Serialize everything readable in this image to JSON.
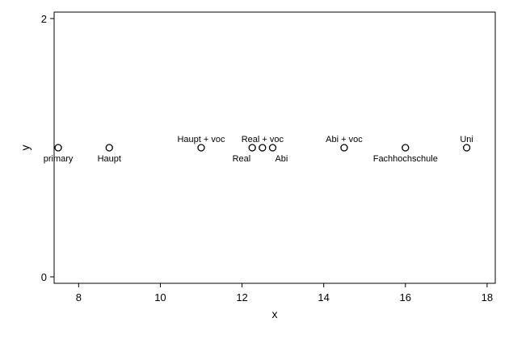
{
  "chart_data": {
    "type": "scatter",
    "title": "",
    "xlabel": "x",
    "ylabel": "y",
    "xlim": [
      7.4,
      18.2
    ],
    "ylim": [
      -0.05,
      2.05
    ],
    "xticks": [
      8,
      10,
      12,
      14,
      16,
      18
    ],
    "yticks": [
      0,
      2
    ],
    "grid": false,
    "points": [
      {
        "x": 7.5,
        "y": 1,
        "label": "primary",
        "label_position": "below"
      },
      {
        "x": 8.75,
        "y": 1,
        "label": "Haupt",
        "label_position": "below"
      },
      {
        "x": 11.0,
        "y": 1,
        "label": "Haupt + voc",
        "label_position": "above"
      },
      {
        "x": 12.25,
        "y": 1,
        "label": "Real",
        "label_position": "below-left"
      },
      {
        "x": 12.5,
        "y": 1,
        "label": "Real + voc",
        "label_position": "above"
      },
      {
        "x": 12.75,
        "y": 1,
        "label": "Abi",
        "label_position": "below-right"
      },
      {
        "x": 14.5,
        "y": 1,
        "label": "Abi + voc",
        "label_position": "above"
      },
      {
        "x": 16.0,
        "y": 1,
        "label": "Fachhochschule",
        "label_position": "below"
      },
      {
        "x": 17.5,
        "y": 1,
        "label": "Uni",
        "label_position": "above"
      }
    ]
  }
}
